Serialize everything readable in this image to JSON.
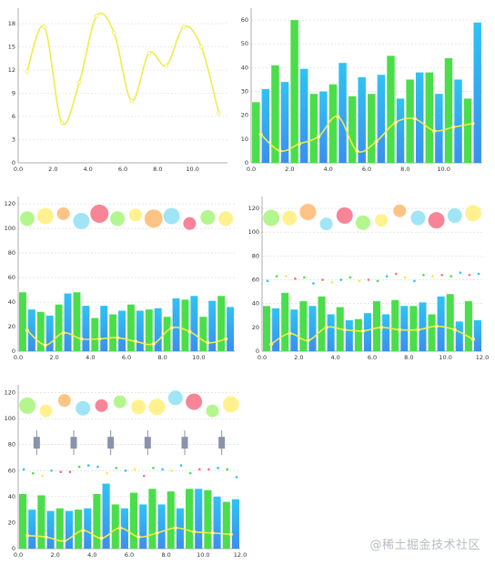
{
  "watermark": "@稀土掘金技术社区",
  "colors": {
    "green": "#4ADE4A",
    "blue": "#2FC3F3",
    "blue_dark": "#3A8FEF",
    "yellow_line": "#F0EB4A",
    "grid": "#d8d8d8",
    "axis": "#999999",
    "candle": "#8A93AD"
  },
  "chart_data": [
    {
      "id": "chart-1",
      "type": "line",
      "xlim": [
        0,
        12
      ],
      "ylim": [
        0,
        20
      ],
      "x_ticks": [
        "0.0",
        "2.0",
        "4.0",
        "6.0",
        "8.0",
        "10.0"
      ],
      "y_ticks": [
        "0",
        "3",
        "6",
        "9",
        "12",
        "15",
        "18"
      ],
      "grid": "horizontal",
      "series": [
        {
          "style": "cubic-line",
          "color": "#F0EB4A",
          "x": [
            0.5,
            1.5,
            2.5,
            3.5,
            4.5,
            5.5,
            6.5,
            7.5,
            8.5,
            9.5,
            10.5,
            11.5
          ],
          "values": [
            11.8,
            17.6,
            5.2,
            10.4,
            19.0,
            16.8,
            8.0,
            14.2,
            12.6,
            17.6,
            15.0,
            6.4
          ]
        }
      ]
    },
    {
      "id": "chart-2",
      "type": "bar",
      "xlim": [
        0,
        12
      ],
      "ylim": [
        0,
        65
      ],
      "x_ticks": [
        "0.0",
        "2.0",
        "4.0",
        "6.0",
        "8.0",
        "10.0"
      ],
      "y_ticks": [
        "0",
        "10",
        "20",
        "30",
        "40",
        "50",
        "60"
      ],
      "grid": "horizontal",
      "bar_width": 0.4,
      "series": [
        {
          "style": "bars",
          "color": "#4ADE4A",
          "x": [
            0.25,
            1.25,
            2.25,
            3.25,
            4.25,
            5.25,
            6.25,
            7.25,
            8.25,
            9.25,
            10.25,
            11.25
          ],
          "values": [
            25.5,
            41,
            60,
            29,
            33,
            28,
            29,
            45,
            35,
            38,
            44,
            27
          ]
        },
        {
          "style": "bars",
          "gradient": [
            "#2FC3F3",
            "#3A8FEF"
          ],
          "x": [
            0.75,
            1.75,
            2.75,
            3.75,
            4.75,
            5.75,
            6.75,
            7.75,
            8.75,
            9.75,
            10.75,
            11.75
          ],
          "values": [
            31,
            34,
            39.5,
            30,
            42,
            36,
            37,
            27,
            38,
            29,
            35,
            59
          ]
        },
        {
          "style": "cubic-line",
          "color": "#F0EB4A",
          "x": [
            0.5,
            1.5,
            2.5,
            3.5,
            4.5,
            5.5,
            6.5,
            7.5,
            8.5,
            9.5,
            10.5,
            11.5
          ],
          "values": [
            12,
            5,
            8,
            11,
            19.5,
            5,
            9,
            17,
            18.5,
            13.5,
            15,
            16.5
          ]
        }
      ]
    },
    {
      "id": "chart-3",
      "type": "bar",
      "xlim": [
        0,
        12
      ],
      "ylim": [
        0,
        126
      ],
      "x_ticks": [
        "0.0",
        "2.0",
        "4.0",
        "6.0",
        "8.0",
        "10.0"
      ],
      "y_ticks": [
        "0",
        "20",
        "40",
        "60",
        "80",
        "100",
        "120"
      ],
      "grid": "horizontal",
      "bar_width": 0.4,
      "series": [
        {
          "style": "bars",
          "color": "#4ADE4A",
          "x": [
            0.25,
            1.25,
            2.25,
            3.25,
            4.25,
            5.25,
            6.25,
            7.25,
            8.25,
            9.25,
            10.25,
            11.25
          ],
          "values": [
            48,
            32,
            38,
            48,
            27,
            30,
            38,
            34,
            28,
            42,
            28,
            45
          ]
        },
        {
          "style": "bars",
          "gradient": [
            "#2FC3F3",
            "#3A8FEF"
          ],
          "x": [
            0.75,
            1.75,
            2.75,
            3.75,
            4.75,
            5.75,
            6.75,
            7.75,
            8.75,
            9.75,
            10.75,
            11.75
          ],
          "values": [
            34,
            29,
            47,
            37,
            37,
            33,
            33,
            35,
            43,
            45,
            41,
            36
          ]
        },
        {
          "style": "cubic-line",
          "color": "#F0EB4A",
          "x": [
            0.5,
            1.5,
            2.5,
            3.5,
            4.5,
            5.5,
            6.5,
            7.5,
            8.5,
            9.5,
            10.5,
            11.5
          ],
          "values": [
            17,
            5,
            15,
            10,
            10,
            11,
            8,
            6,
            19,
            16,
            7,
            10
          ]
        },
        {
          "style": "bubbles",
          "x": [
            0.5,
            1.5,
            2.5,
            3.5,
            4.5,
            5.5,
            6.5,
            7.5,
            8.5,
            9.5,
            10.5,
            11.5
          ],
          "values": [
            108,
            110,
            112,
            106,
            112,
            108,
            111,
            108,
            110,
            104,
            109,
            108
          ],
          "sizes": [
            8,
            9,
            7,
            9,
            10,
            8,
            7,
            10,
            9,
            7,
            8,
            8
          ],
          "colors": [
            "#A6F57A",
            "#FFF07A",
            "#FFB870",
            "#8FE0F5",
            "#F76F86",
            "#A6F57A",
            "#FFF07A",
            "#FFB870",
            "#8FE0F5",
            "#F76F86",
            "#A6F57A",
            "#FFF07A"
          ]
        }
      ]
    },
    {
      "id": "chart-4",
      "type": "bar",
      "xlim": [
        0,
        12
      ],
      "ylim": [
        0,
        130
      ],
      "x_ticks": [
        "0.0",
        "2.0",
        "4.0",
        "6.0",
        "8.0",
        "10.0",
        "12.0"
      ],
      "y_ticks": [
        "0",
        "20",
        "40",
        "60",
        "80",
        "100",
        "120"
      ],
      "grid": "horizontal",
      "bar_width": 0.4,
      "series": [
        {
          "style": "bars",
          "color": "#4ADE4A",
          "x": [
            0.25,
            1.25,
            2.25,
            3.25,
            4.25,
            5.25,
            6.25,
            7.25,
            8.25,
            9.25,
            10.25,
            11.25
          ],
          "values": [
            38,
            49,
            42,
            46,
            37,
            27,
            42,
            43,
            38,
            31,
            48,
            42
          ]
        },
        {
          "style": "bars",
          "gradient": [
            "#2FC3F3",
            "#3A8FEF"
          ],
          "x": [
            0.75,
            1.75,
            2.75,
            3.75,
            4.75,
            5.75,
            6.75,
            7.75,
            8.75,
            9.75,
            10.75,
            11.75
          ],
          "values": [
            36,
            35,
            38,
            31,
            26,
            32,
            31,
            38,
            41,
            46,
            25,
            26
          ]
        },
        {
          "style": "cubic-line",
          "color": "#F0EB4A",
          "x": [
            0.5,
            1.5,
            2.5,
            3.5,
            4.5,
            5.5,
            6.5,
            7.5,
            8.5,
            9.5,
            10.5,
            11.5
          ],
          "values": [
            6,
            15,
            9,
            20,
            18,
            17,
            20,
            18,
            18,
            21,
            18,
            10
          ]
        },
        {
          "style": "dots",
          "x": [
            0.3,
            0.8,
            1.3,
            1.8,
            2.3,
            2.8,
            3.3,
            3.8,
            4.3,
            4.8,
            5.3,
            5.8,
            6.3,
            6.8,
            7.3,
            7.8,
            8.3,
            8.8,
            9.3,
            9.8,
            10.3,
            10.8,
            11.3,
            11.8
          ],
          "values": [
            59,
            63,
            63,
            61,
            62,
            57,
            60,
            58,
            60,
            62,
            59,
            60,
            59,
            63,
            65,
            62,
            59,
            64,
            63,
            64,
            63,
            66,
            64,
            65
          ],
          "colors": [
            "#2FC3F3",
            "#4ADE4A",
            "#F0EB4A",
            "#F76F86",
            "#4ADE4A",
            "#2FC3F3",
            "#F76F86",
            "#F0EB4A",
            "#2FC3F3",
            "#4ADE4A",
            "#F0EB4A",
            "#F76F86",
            "#4ADE4A",
            "#2FC3F3",
            "#F76F86",
            "#F0EB4A",
            "#2FC3F3",
            "#4ADE4A",
            "#F0EB4A",
            "#F76F86",
            "#4ADE4A",
            "#2FC3F3",
            "#F76F86",
            "#2FC3F3"
          ]
        },
        {
          "style": "bubbles",
          "x": [
            0.5,
            1.5,
            2.5,
            3.5,
            4.5,
            5.5,
            6.5,
            7.5,
            8.5,
            9.5,
            10.5,
            11.5
          ],
          "values": [
            112,
            112,
            117,
            107,
            114,
            108,
            110,
            118,
            112,
            110,
            114,
            116
          ],
          "sizes": [
            9,
            8,
            9,
            7,
            9,
            8,
            7,
            7,
            8,
            9,
            8,
            9
          ],
          "colors": [
            "#A6F57A",
            "#FFF07A",
            "#FFB870",
            "#8FE0F5",
            "#F76F86",
            "#A6F57A",
            "#FFF07A",
            "#FFB870",
            "#8FE0F5",
            "#F76F86",
            "#8FE0F5",
            "#FFF07A"
          ]
        }
      ]
    },
    {
      "id": "chart-5",
      "type": "bar",
      "xlim": [
        0,
        12
      ],
      "ylim": [
        0,
        126
      ],
      "x_ticks": [
        "0.0",
        "2.0",
        "4.0",
        "6.0",
        "8.0",
        "10.0",
        "12.0"
      ],
      "y_ticks": [
        "0",
        "20",
        "40",
        "60",
        "80",
        "100",
        "120"
      ],
      "grid": "horizontal",
      "bar_width": 0.4,
      "series": [
        {
          "style": "bars",
          "color": "#4ADE4A",
          "x": [
            0.25,
            1.25,
            2.25,
            3.25,
            4.25,
            5.25,
            6.25,
            7.25,
            8.25,
            9.25,
            10.25,
            11.25
          ],
          "values": [
            42,
            41,
            31,
            30,
            42,
            34,
            43,
            46,
            44,
            46,
            45,
            36
          ],
          "values_note": ""
        },
        {
          "style": "bars",
          "gradient": [
            "#2FC3F3",
            "#3A8FEF"
          ],
          "x": [
            0.75,
            1.75,
            2.75,
            3.75,
            4.75,
            5.75,
            6.75,
            7.75,
            8.75,
            9.75,
            10.75,
            11.75
          ],
          "values": [
            30,
            29,
            29,
            31,
            50,
            31,
            34,
            34,
            31,
            46,
            40,
            38
          ]
        },
        {
          "style": "cubic-line",
          "color": "#F0EB4A",
          "x": [
            0.5,
            1.5,
            2.5,
            3.5,
            4.5,
            5.5,
            6.5,
            7.5,
            8.5,
            9.5,
            10.5,
            11.5
          ],
          "values": [
            10,
            9,
            6,
            14,
            8,
            16,
            9,
            12,
            16,
            13,
            12,
            11
          ]
        },
        {
          "style": "dots",
          "x": [
            0.3,
            0.8,
            1.3,
            1.8,
            2.3,
            2.8,
            3.3,
            3.8,
            4.3,
            4.8,
            5.3,
            5.8,
            6.3,
            6.8,
            7.3,
            7.8,
            8.3,
            8.8,
            9.3,
            9.8,
            10.3,
            10.8,
            11.3,
            11.8
          ],
          "values": [
            61,
            58,
            56,
            60,
            59,
            59,
            63,
            64,
            63,
            58,
            62,
            60,
            61,
            56,
            62,
            61,
            60,
            64,
            58,
            61,
            61,
            62,
            61,
            55
          ],
          "colors": [
            "#2FC3F3",
            "#4ADE4A",
            "#F0EB4A",
            "#2FC3F3",
            "#F76F86",
            "#F76F86",
            "#4ADE4A",
            "#2FC3F3",
            "#2FC3F3",
            "#F0EB4A",
            "#4ADE4A",
            "#2FC3F3",
            "#F0EB4A",
            "#F76F86",
            "#4ADE4A",
            "#2FC3F3",
            "#F0EB4A",
            "#2FC3F3",
            "#4ADE4A",
            "#F76F86",
            "#F76F86",
            "#2FC3F3",
            "#4ADE4A",
            "#2FC3F3"
          ]
        },
        {
          "style": "candles",
          "color": "#8A93AD",
          "x": [
            1,
            3,
            5,
            7,
            9,
            11
          ],
          "high": [
            91,
            91,
            91,
            91,
            91,
            91
          ],
          "low": [
            72,
            72,
            72,
            72,
            72,
            72
          ],
          "open": [
            86,
            86,
            86,
            86,
            86,
            86
          ],
          "close": [
            77,
            77,
            77,
            77,
            77,
            77
          ]
        },
        {
          "style": "bubbles",
          "x": [
            0.5,
            1.5,
            2.5,
            3.5,
            4.5,
            5.5,
            6.5,
            7.5,
            8.5,
            9.5,
            10.5,
            11.5
          ],
          "values": [
            110,
            106,
            114,
            108,
            110,
            113,
            109,
            109,
            116,
            113,
            106,
            111
          ],
          "sizes": [
            9,
            7,
            7,
            8,
            7,
            7,
            8,
            9,
            8,
            9,
            7,
            9
          ],
          "colors": [
            "#A6F57A",
            "#FFF07A",
            "#FFB870",
            "#8FE0F5",
            "#F76F86",
            "#A6F57A",
            "#FFF07A",
            "#FFF07A",
            "#8FE0F5",
            "#F76F86",
            "#A6F57A",
            "#FFF07A"
          ]
        }
      ]
    }
  ]
}
